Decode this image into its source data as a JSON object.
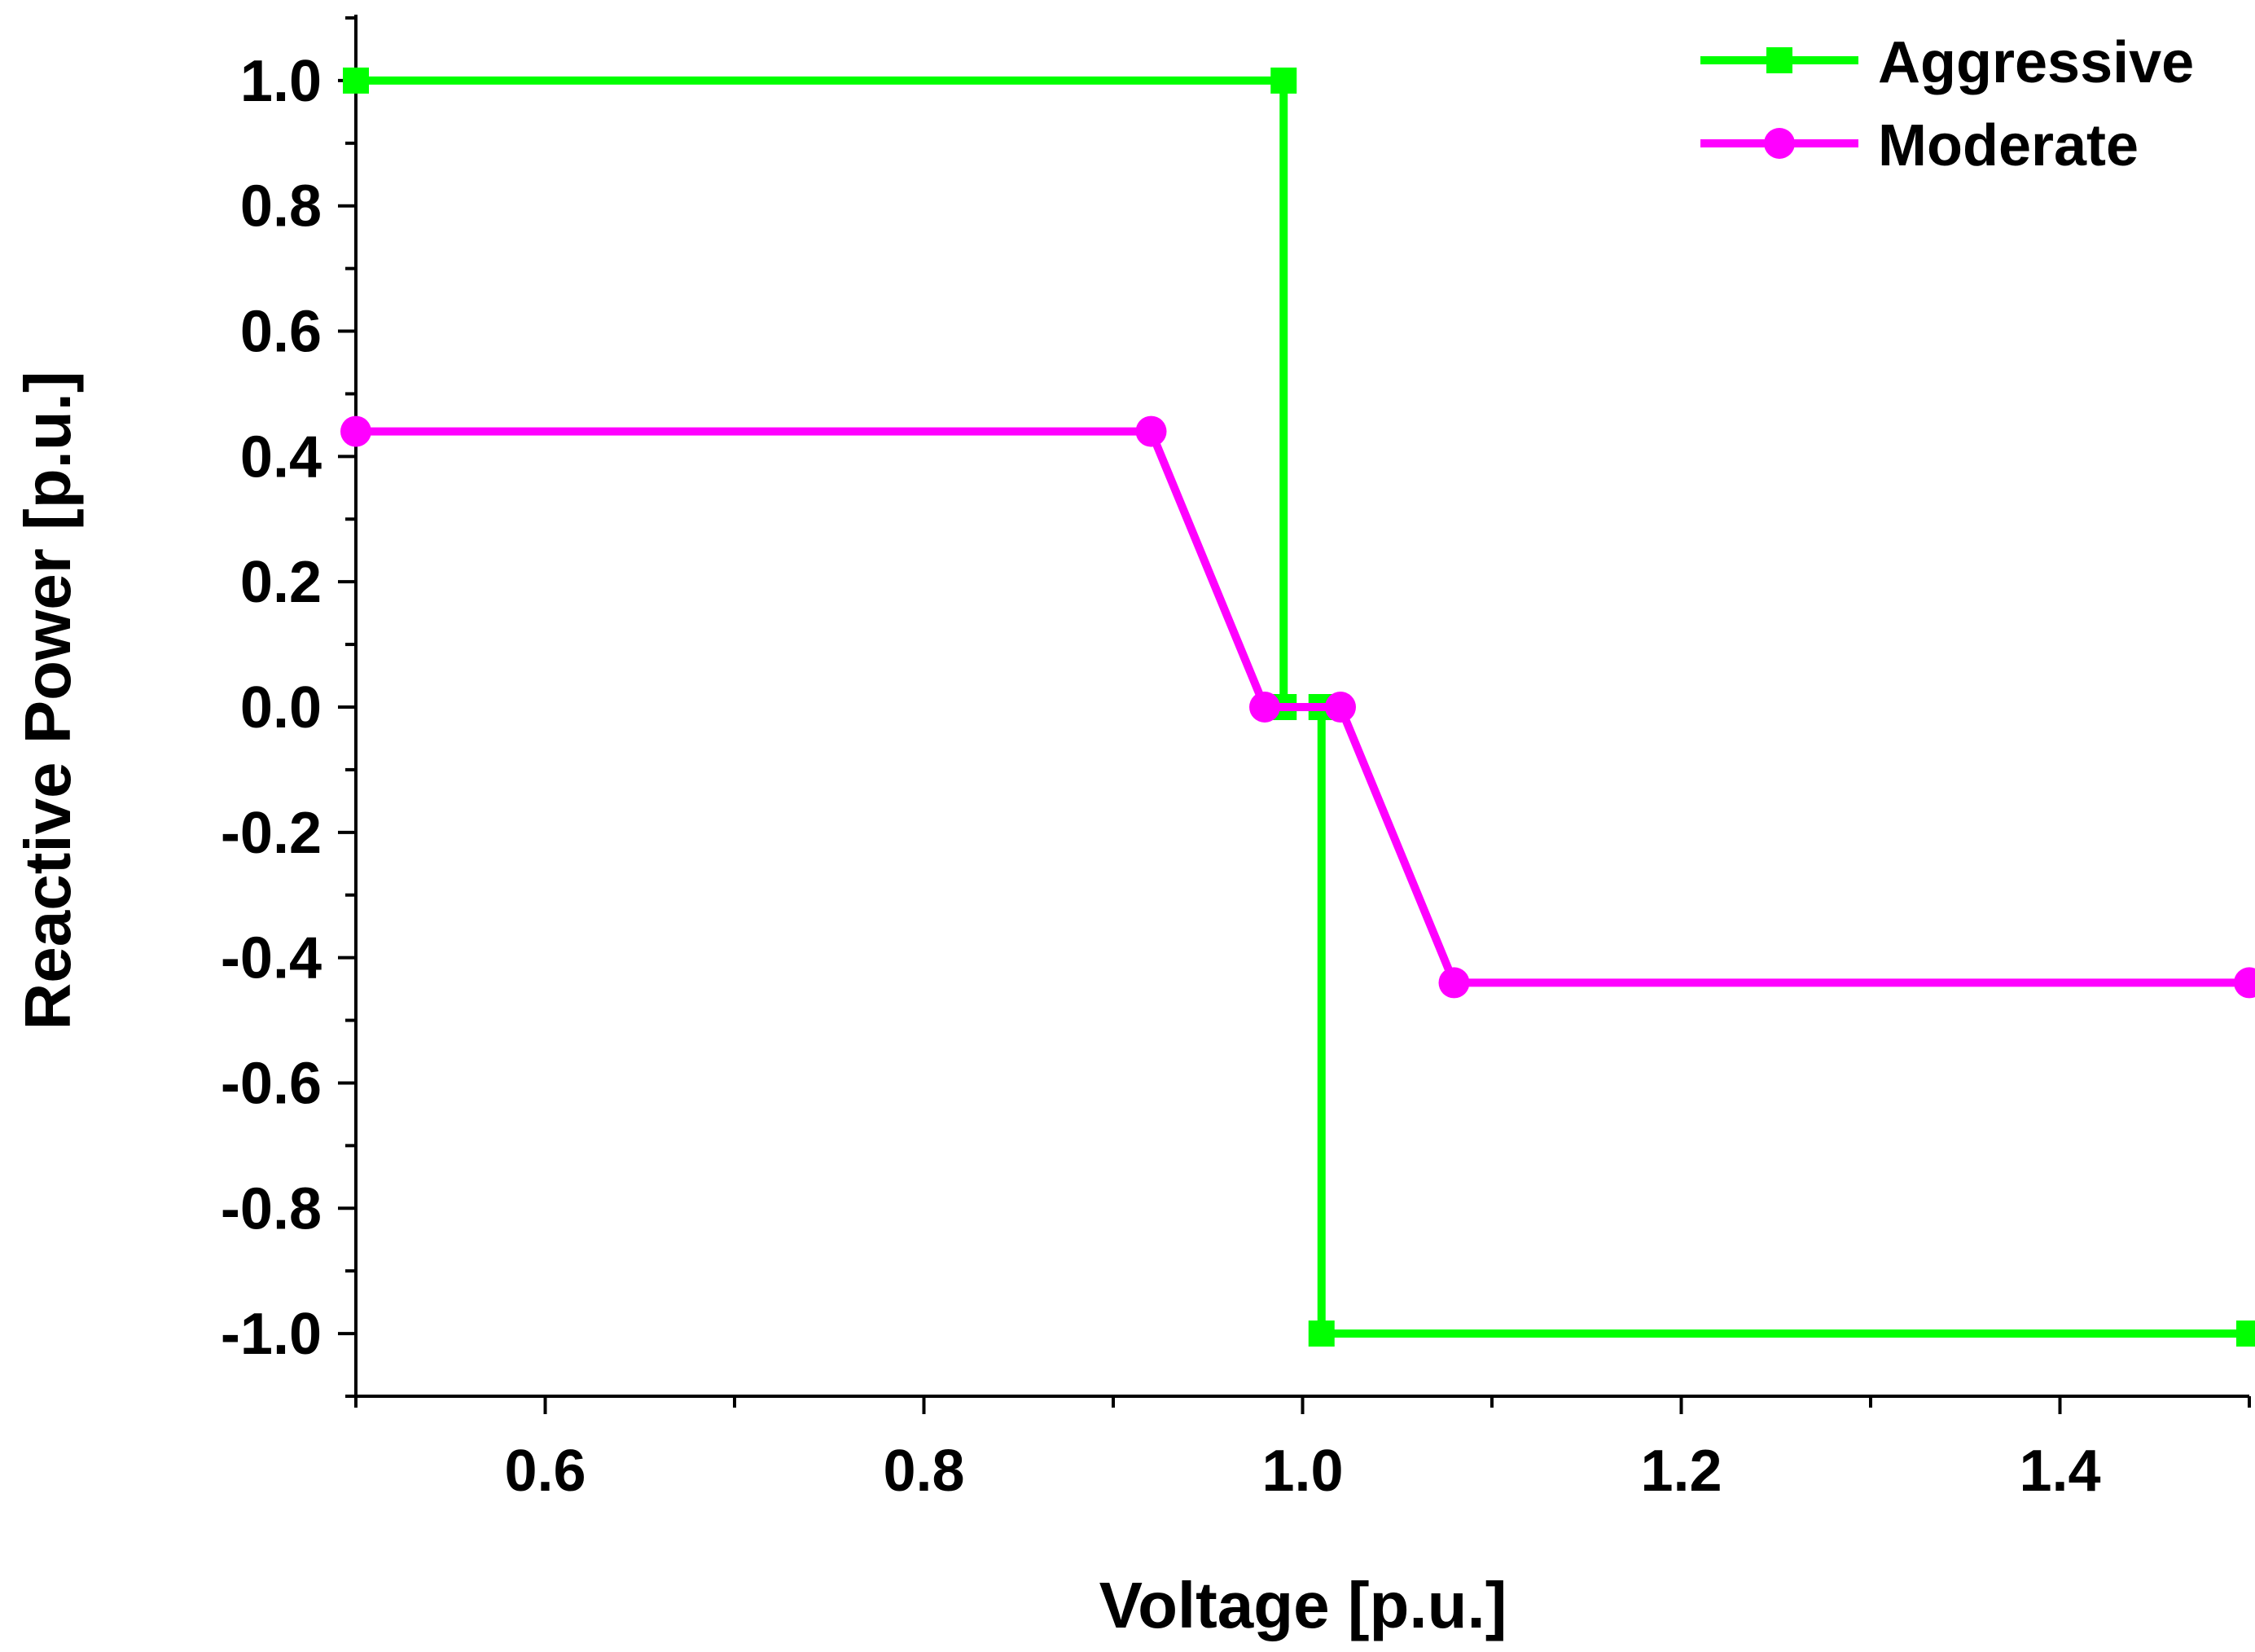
{
  "chart_data": {
    "type": "line",
    "title": "",
    "xlabel": "Voltage [p.u.]",
    "ylabel": "Reactive Power [p.u.]",
    "xlim": [
      0.5,
      1.5
    ],
    "ylim": [
      -1.1,
      1.1
    ],
    "x_ticks": [
      0.6,
      0.8,
      1.0,
      1.2,
      1.4
    ],
    "x_tick_labels": [
      "0.6",
      "0.8",
      "1.0",
      "1.2",
      "1.4"
    ],
    "y_ticks": [
      1.0,
      0.8,
      0.6,
      0.4,
      0.2,
      0.0,
      -0.2,
      -0.4,
      -0.6,
      -0.8,
      -1.0
    ],
    "y_tick_labels": [
      "1.0",
      "0.8",
      "0.6",
      "0.4",
      "0.2",
      "0.0",
      "-0.2",
      "-0.4",
      "-0.6",
      "-0.8",
      "-1.0"
    ],
    "grid": false,
    "legend_position": "top-right",
    "series": [
      {
        "name": "Aggressive",
        "color": "#00ff00",
        "marker": "square",
        "points": [
          [
            0.5,
            1.0
          ],
          [
            0.99,
            1.0
          ],
          [
            0.99,
            0.0
          ],
          [
            1.01,
            0.0
          ],
          [
            1.01,
            -1.0
          ],
          [
            1.5,
            -1.0
          ]
        ]
      },
      {
        "name": "Moderate",
        "color": "#ff00ff",
        "marker": "circle",
        "points": [
          [
            0.5,
            0.44
          ],
          [
            0.92,
            0.44
          ],
          [
            0.98,
            0.0
          ],
          [
            1.02,
            0.0
          ],
          [
            1.08,
            -0.44
          ],
          [
            1.5,
            -0.44
          ]
        ]
      }
    ]
  }
}
